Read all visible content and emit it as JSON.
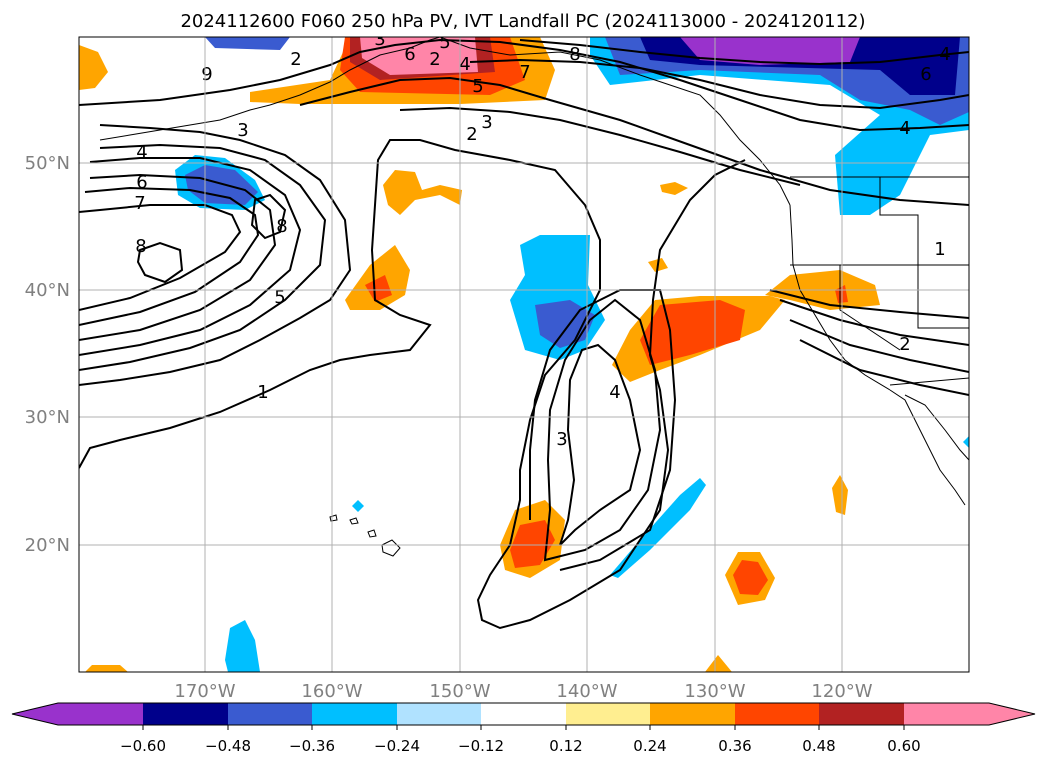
{
  "title": "2024112600 F060 250 hPa PV, IVT Landfall PC (2024113000 - 2024120112)",
  "lon_labels": [
    "170°W",
    "160°W",
    "150°W",
    "140°W",
    "130°W",
    "120°W"
  ],
  "lat_labels": [
    "50°N",
    "40°N",
    "30°N",
    "20°N"
  ],
  "contour_labels": [
    "1",
    "2",
    "3",
    "4",
    "5",
    "6",
    "7",
    "8",
    "9",
    "2",
    "3",
    "4",
    "5",
    "6",
    "7",
    "8",
    "2",
    "3",
    "4",
    "1",
    "3",
    "4",
    "5",
    "6",
    "8",
    "2",
    "4"
  ],
  "colorbar": {
    "tick_labels": [
      "−0.60",
      "−0.48",
      "−0.36",
      "−0.24",
      "−0.12",
      "0.12",
      "0.24",
      "0.36",
      "0.48",
      "0.60"
    ],
    "colors": [
      "#9932cc",
      "#00008b",
      "#3a5bd0",
      "#00bfff",
      "#b0e2ff",
      "#ffffff",
      "#ffee90",
      "#ffa500",
      "#ff4500",
      "#b22222",
      "#ff85a8"
    ]
  },
  "colors": {
    "text": "#000000",
    "axis_label": "#808080",
    "grid": "#b0b0b0"
  }
}
